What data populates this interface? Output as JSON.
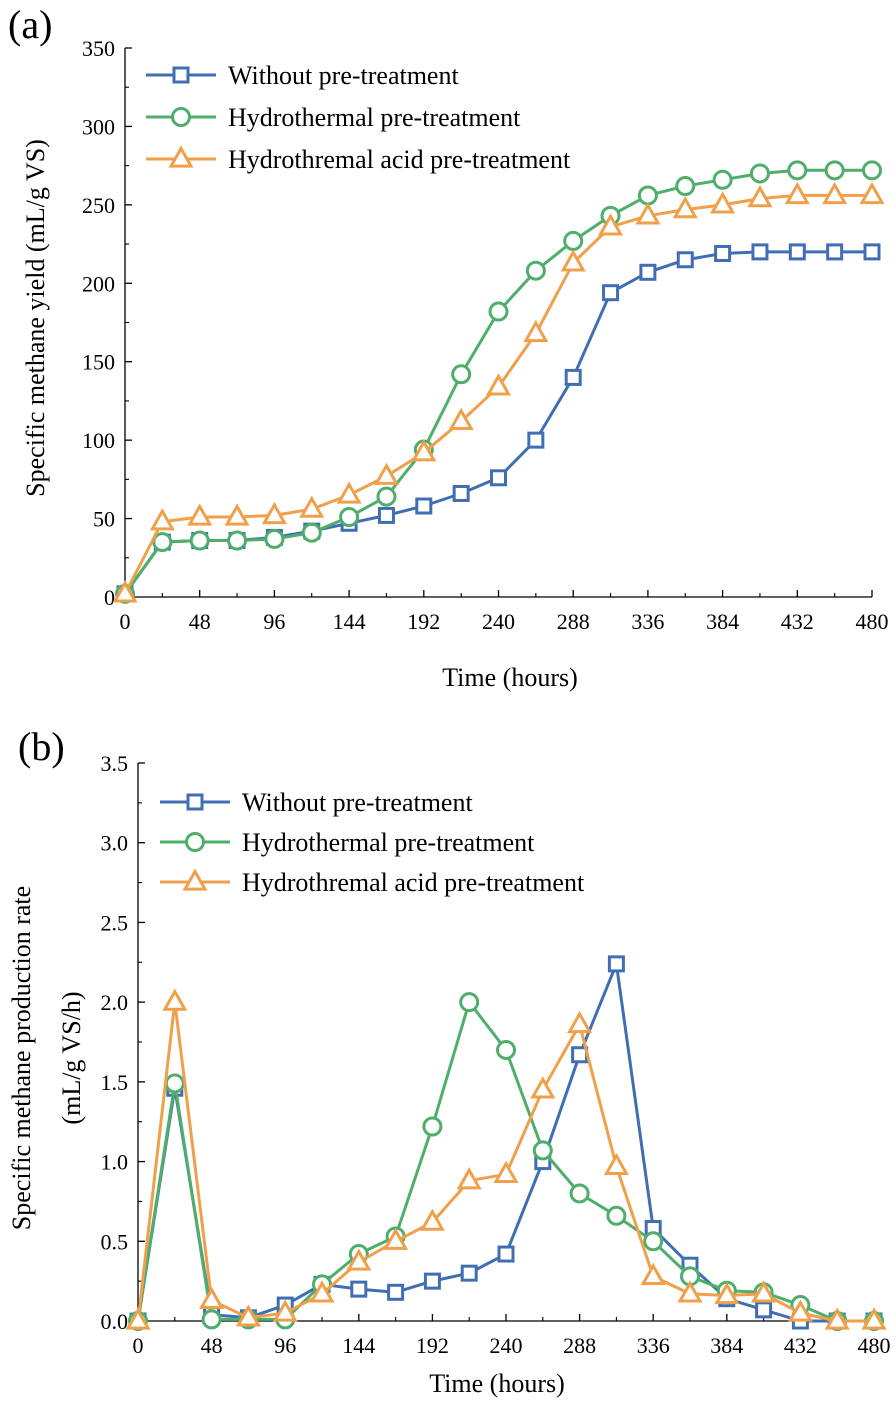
{
  "chart_data": [
    {
      "type": "line",
      "panel_label": "(a)",
      "xlabel": "Time (hours)",
      "ylabel": "Specific methane yield (mL/g VS)",
      "xlim": [
        0,
        480
      ],
      "ylim": [
        0,
        350
      ],
      "xticks": [
        "0",
        "48",
        "96",
        "144",
        "192",
        "240",
        "288",
        "336",
        "384",
        "432",
        "480"
      ],
      "yticks": [
        "0",
        "50",
        "100",
        "150",
        "200",
        "250",
        "300",
        "350"
      ],
      "legend_position": "top-left",
      "x": [
        0,
        24,
        48,
        72,
        96,
        120,
        144,
        168,
        192,
        216,
        240,
        264,
        288,
        312,
        336,
        360,
        384,
        408,
        432,
        456,
        480
      ],
      "series": [
        {
          "name": "Without pre-treatment",
          "marker": "square",
          "color": "#3F6FB2",
          "values": [
            2,
            35,
            36,
            36,
            38,
            42,
            47,
            52,
            58,
            66,
            76,
            100,
            140,
            194,
            207,
            215,
            219,
            220,
            220,
            220,
            220
          ]
        },
        {
          "name": "Hydrothermal pre-treatment",
          "marker": "circle",
          "color": "#4FAE6B",
          "values": [
            2,
            35,
            36,
            36,
            37,
            41,
            51,
            64,
            94,
            142,
            182,
            208,
            227,
            243,
            256,
            262,
            266,
            270,
            272,
            272,
            272
          ]
        },
        {
          "name": "Hydrothremal acid pre-treatment",
          "marker": "triangle",
          "color": "#F0A04B",
          "values": [
            2,
            48,
            51,
            51,
            52,
            56,
            65,
            77,
            92,
            112,
            134,
            168,
            213,
            236,
            243,
            247,
            250,
            254,
            256,
            256,
            256
          ]
        }
      ]
    },
    {
      "type": "line",
      "panel_label": "(b)",
      "xlabel": "Time (hours)",
      "ylabel_line1": "Specific methane production rate",
      "ylabel_line2": "(mL/g VS/h)",
      "xlim": [
        0,
        480
      ],
      "ylim": [
        0,
        3.5
      ],
      "xticks": [
        "0",
        "48",
        "96",
        "144",
        "192",
        "240",
        "288",
        "336",
        "384",
        "432",
        "480"
      ],
      "yticks": [
        "0.0",
        "0.5",
        "1.0",
        "1.5",
        "2.0",
        "2.5",
        "3.0",
        "3.5"
      ],
      "legend_position": "top-left",
      "series": [
        {
          "name": "Without pre-treatment",
          "marker": "square",
          "color": "#3F6FB2",
          "x": [
            0,
            24,
            48,
            72,
            96,
            120,
            144,
            168,
            192,
            216,
            240,
            264,
            288,
            312,
            336,
            360,
            384,
            408,
            432,
            456,
            480
          ],
          "values": [
            0.0,
            1.46,
            0.04,
            0.02,
            0.1,
            0.23,
            0.2,
            0.18,
            0.25,
            0.3,
            0.42,
            1.0,
            1.67,
            2.24,
            0.58,
            0.35,
            0.14,
            0.07,
            0.0,
            0.0,
            0.0
          ]
        },
        {
          "name": "Hydrothermal pre-treatment",
          "marker": "circle",
          "color": "#4FAE6B",
          "x": [
            0,
            24,
            48,
            72,
            96,
            120,
            144,
            168,
            192,
            216,
            240,
            264,
            288,
            312,
            336,
            360,
            384,
            408,
            432,
            456,
            480
          ],
          "values": [
            0.0,
            1.49,
            0.01,
            0.01,
            0.01,
            0.23,
            0.42,
            0.53,
            1.22,
            2.0,
            1.7,
            1.07,
            0.8,
            0.66,
            0.5,
            0.28,
            0.19,
            0.18,
            0.1,
            0.0,
            0.0
          ]
        },
        {
          "name": "Hydrothremal acid pre-treatment",
          "marker": "triangle",
          "color": "#F0A04B",
          "x": [
            0,
            24,
            48,
            72,
            96,
            120,
            144,
            168,
            192,
            216,
            240,
            264,
            288,
            312,
            336,
            360,
            384,
            408,
            432,
            456,
            480
          ],
          "values": [
            0.0,
            2.0,
            0.13,
            0.02,
            0.05,
            0.17,
            0.37,
            0.5,
            0.62,
            0.88,
            0.92,
            1.45,
            1.86,
            0.97,
            0.28,
            0.17,
            0.16,
            0.17,
            0.05,
            0.0,
            0.0
          ]
        }
      ]
    }
  ]
}
